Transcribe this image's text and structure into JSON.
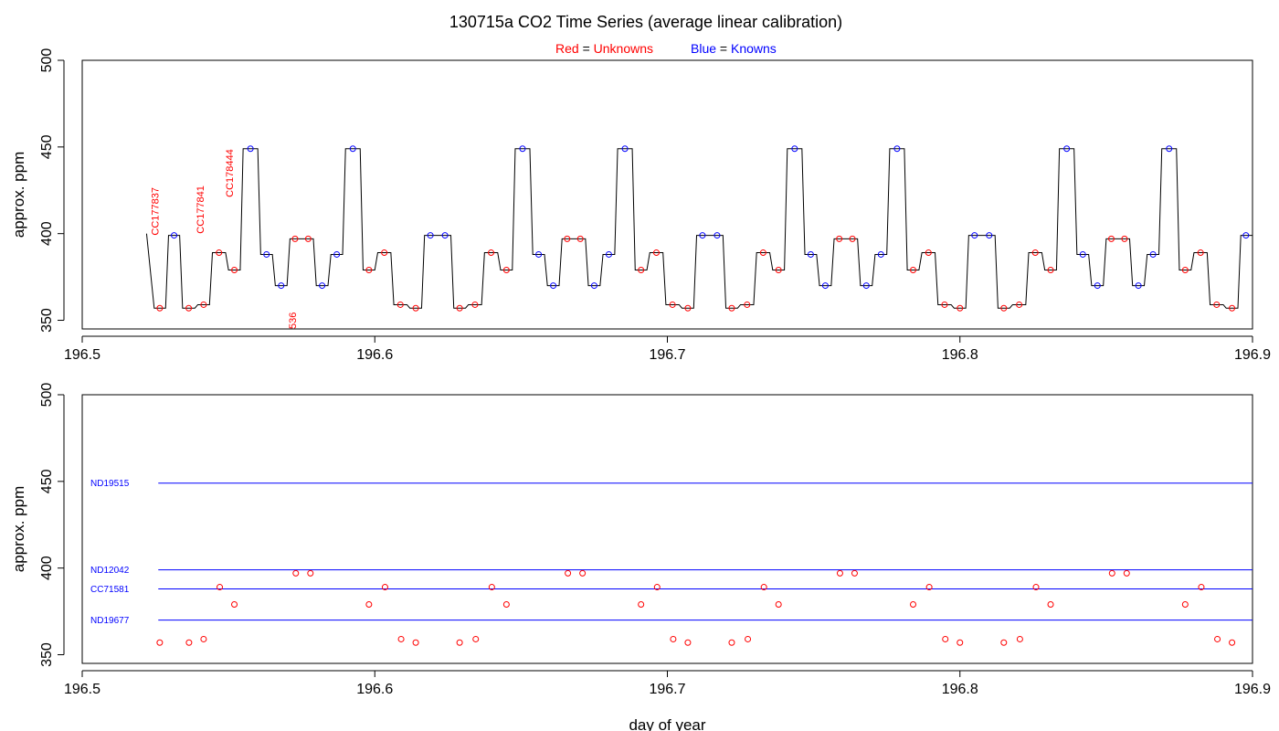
{
  "colors": {
    "unknown": "#ff0000",
    "known": "#0000ff",
    "trace": "#000000",
    "axis": "#000000"
  },
  "title": "130715a   CO2 Time Series (average linear calibration)",
  "legend": {
    "red_word": "Red",
    "red_eq": " = ",
    "red_label": "Unknowns",
    "blue_word": "Blue",
    "blue_eq": " = ",
    "blue_label": "Knowns"
  },
  "chart_data": [
    {
      "type": "line",
      "xlabel": "",
      "ylabel": "approx. ppm",
      "xlim": [
        196.5,
        196.9
      ],
      "ylim": [
        345,
        500
      ],
      "xticks": [
        "196.5",
        "196.6",
        "196.7",
        "196.8",
        "196.9"
      ],
      "yticks": [
        "350",
        "400",
        "450",
        "500"
      ],
      "trace_steps": [
        {
          "x0": 196.524,
          "x1": 196.529,
          "y": 357,
          "kind": "u"
        },
        {
          "x0": 196.529,
          "x1": 196.5338,
          "y": 399,
          "kind": "k"
        },
        {
          "x0": 196.5338,
          "x1": 196.539,
          "y": 357,
          "kind": "u"
        },
        {
          "x0": 196.539,
          "x1": 196.544,
          "y": 359,
          "kind": "u"
        },
        {
          "x0": 196.544,
          "x1": 196.5495,
          "y": 389,
          "kind": "u"
        },
        {
          "x0": 196.5495,
          "x1": 196.5545,
          "y": 379,
          "kind": "u"
        },
        {
          "x0": 196.5545,
          "x1": 196.5605,
          "y": 449,
          "kind": "k"
        },
        {
          "x0": 196.5605,
          "x1": 196.5655,
          "y": 388,
          "kind": "k"
        },
        {
          "x0": 196.5655,
          "x1": 196.5705,
          "y": 370,
          "kind": "k"
        },
        {
          "x0": 196.5705,
          "x1": 196.5795,
          "y": 397,
          "kind": "u"
        },
        {
          "x0": 196.5795,
          "x1": 196.5845,
          "y": 370,
          "kind": "k"
        },
        {
          "x0": 196.5845,
          "x1": 196.5895,
          "y": 388,
          "kind": "k"
        },
        {
          "x0": 196.5895,
          "x1": 196.5955,
          "y": 449,
          "kind": "k"
        },
        {
          "x0": 196.5955,
          "x1": 196.6005,
          "y": 379,
          "kind": "u"
        },
        {
          "x0": 196.6005,
          "x1": 196.606,
          "y": 389,
          "kind": "u"
        },
        {
          "x0": 196.606,
          "x1": 196.6115,
          "y": 359,
          "kind": "u"
        },
        {
          "x0": 196.6115,
          "x1": 196.6165,
          "y": 357,
          "kind": "u"
        },
        {
          "x0": 196.6165,
          "x1": 196.6265,
          "y": 399,
          "kind": "k"
        },
        {
          "x0": 196.6265,
          "x1": 196.6315,
          "y": 357,
          "kind": "u"
        },
        {
          "x0": 196.6315,
          "x1": 196.637,
          "y": 359,
          "kind": "u"
        },
        {
          "x0": 196.637,
          "x1": 196.6425,
          "y": 389,
          "kind": "u"
        },
        {
          "x0": 196.6425,
          "x1": 196.6475,
          "y": 379,
          "kind": "u"
        },
        {
          "x0": 196.6475,
          "x1": 196.6535,
          "y": 449,
          "kind": "k"
        },
        {
          "x0": 196.6535,
          "x1": 196.6585,
          "y": 388,
          "kind": "k"
        },
        {
          "x0": 196.6585,
          "x1": 196.6635,
          "y": 370,
          "kind": "k"
        },
        {
          "x0": 196.6635,
          "x1": 196.6725,
          "y": 397,
          "kind": "u"
        },
        {
          "x0": 196.6725,
          "x1": 196.6775,
          "y": 370,
          "kind": "k"
        },
        {
          "x0": 196.6775,
          "x1": 196.6825,
          "y": 388,
          "kind": "k"
        },
        {
          "x0": 196.6825,
          "x1": 196.6885,
          "y": 449,
          "kind": "k"
        },
        {
          "x0": 196.6885,
          "x1": 196.6935,
          "y": 379,
          "kind": "u"
        },
        {
          "x0": 196.6935,
          "x1": 196.699,
          "y": 389,
          "kind": "u"
        },
        {
          "x0": 196.699,
          "x1": 196.7045,
          "y": 359,
          "kind": "u"
        },
        {
          "x0": 196.7045,
          "x1": 196.7095,
          "y": 357,
          "kind": "u"
        },
        {
          "x0": 196.7095,
          "x1": 196.7195,
          "y": 399,
          "kind": "k"
        },
        {
          "x0": 196.7195,
          "x1": 196.7245,
          "y": 357,
          "kind": "u"
        },
        {
          "x0": 196.7245,
          "x1": 196.73,
          "y": 359,
          "kind": "u"
        },
        {
          "x0": 196.73,
          "x1": 196.7355,
          "y": 389,
          "kind": "u"
        },
        {
          "x0": 196.7355,
          "x1": 196.7405,
          "y": 379,
          "kind": "u"
        },
        {
          "x0": 196.7405,
          "x1": 196.7465,
          "y": 449,
          "kind": "k"
        },
        {
          "x0": 196.7465,
          "x1": 196.7515,
          "y": 388,
          "kind": "k"
        },
        {
          "x0": 196.7515,
          "x1": 196.7565,
          "y": 370,
          "kind": "k"
        },
        {
          "x0": 196.7565,
          "x1": 196.7655,
          "y": 397,
          "kind": "u"
        },
        {
          "x0": 196.7655,
          "x1": 196.7705,
          "y": 370,
          "kind": "k"
        },
        {
          "x0": 196.7705,
          "x1": 196.7755,
          "y": 388,
          "kind": "k"
        },
        {
          "x0": 196.7755,
          "x1": 196.7815,
          "y": 449,
          "kind": "k"
        },
        {
          "x0": 196.7815,
          "x1": 196.7865,
          "y": 379,
          "kind": "u"
        },
        {
          "x0": 196.7865,
          "x1": 196.792,
          "y": 389,
          "kind": "u"
        },
        {
          "x0": 196.792,
          "x1": 196.7975,
          "y": 359,
          "kind": "u"
        },
        {
          "x0": 196.7975,
          "x1": 196.8025,
          "y": 357,
          "kind": "u"
        },
        {
          "x0": 196.8025,
          "x1": 196.8125,
          "y": 399,
          "kind": "k"
        },
        {
          "x0": 196.8125,
          "x1": 196.8175,
          "y": 357,
          "kind": "u"
        },
        {
          "x0": 196.8175,
          "x1": 196.823,
          "y": 359,
          "kind": "u"
        },
        {
          "x0": 196.823,
          "x1": 196.8285,
          "y": 389,
          "kind": "u"
        },
        {
          "x0": 196.8285,
          "x1": 196.8335,
          "y": 379,
          "kind": "u"
        },
        {
          "x0": 196.8335,
          "x1": 196.8395,
          "y": 449,
          "kind": "k"
        },
        {
          "x0": 196.8395,
          "x1": 196.8445,
          "y": 388,
          "kind": "k"
        },
        {
          "x0": 196.8445,
          "x1": 196.8495,
          "y": 370,
          "kind": "k"
        },
        {
          "x0": 196.8495,
          "x1": 196.8585,
          "y": 397,
          "kind": "u"
        },
        {
          "x0": 196.8585,
          "x1": 196.8635,
          "y": 370,
          "kind": "k"
        },
        {
          "x0": 196.8635,
          "x1": 196.8685,
          "y": 388,
          "kind": "k"
        },
        {
          "x0": 196.8685,
          "x1": 196.8745,
          "y": 449,
          "kind": "k"
        },
        {
          "x0": 196.8745,
          "x1": 196.8795,
          "y": 379,
          "kind": "u"
        },
        {
          "x0": 196.8795,
          "x1": 196.885,
          "y": 389,
          "kind": "u"
        },
        {
          "x0": 196.885,
          "x1": 196.8905,
          "y": 359,
          "kind": "u"
        },
        {
          "x0": 196.8905,
          "x1": 196.8955,
          "y": 357,
          "kind": "u"
        },
        {
          "x0": 196.8955,
          "x1": 196.9,
          "y": 399,
          "kind": "k"
        }
      ],
      "trace_start": {
        "x": 196.522,
        "y": 400
      },
      "trace_end": {
        "x": 196.9,
        "y": 399
      },
      "annotations": [
        {
          "text": "CC177837",
          "x": 196.526,
          "y": 399
        },
        {
          "text": "CC177841",
          "x": 196.5415,
          "y": 400
        },
        {
          "text": "CC178444",
          "x": 196.5515,
          "y": 421
        },
        {
          "text": "536",
          "x": 196.573,
          "y": 345
        }
      ]
    },
    {
      "type": "scatter",
      "xlabel": "day of year",
      "ylabel": "approx. ppm",
      "xlim": [
        196.5,
        196.9
      ],
      "ylim": [
        345,
        500
      ],
      "xticks": [
        "196.5",
        "196.6",
        "196.7",
        "196.8",
        "196.9"
      ],
      "yticks": [
        "350",
        "400",
        "450",
        "500"
      ],
      "reference_lines": [
        {
          "name": "ND19515",
          "y": 449,
          "x0": 196.526,
          "x1": 196.9
        },
        {
          "name": "ND12042",
          "y": 399,
          "x0": 196.526,
          "x1": 196.9
        },
        {
          "name": "CC71581",
          "y": 388,
          "x0": 196.526,
          "x1": 196.9
        },
        {
          "name": "ND19677",
          "y": 370,
          "x0": 196.526,
          "x1": 196.9
        }
      ],
      "points": [
        {
          "x": 196.5265,
          "y": 357
        },
        {
          "x": 196.5365,
          "y": 357
        },
        {
          "x": 196.5415,
          "y": 359
        },
        {
          "x": 196.547,
          "y": 389
        },
        {
          "x": 196.552,
          "y": 379
        },
        {
          "x": 196.573,
          "y": 397
        },
        {
          "x": 196.578,
          "y": 397
        },
        {
          "x": 196.598,
          "y": 379
        },
        {
          "x": 196.6035,
          "y": 389
        },
        {
          "x": 196.609,
          "y": 359
        },
        {
          "x": 196.614,
          "y": 357
        },
        {
          "x": 196.629,
          "y": 357
        },
        {
          "x": 196.6345,
          "y": 359
        },
        {
          "x": 196.64,
          "y": 389
        },
        {
          "x": 196.645,
          "y": 379
        },
        {
          "x": 196.666,
          "y": 397
        },
        {
          "x": 196.671,
          "y": 397
        },
        {
          "x": 196.691,
          "y": 379
        },
        {
          "x": 196.6965,
          "y": 389
        },
        {
          "x": 196.702,
          "y": 359
        },
        {
          "x": 196.707,
          "y": 357
        },
        {
          "x": 196.722,
          "y": 357
        },
        {
          "x": 196.7275,
          "y": 359
        },
        {
          "x": 196.733,
          "y": 389
        },
        {
          "x": 196.738,
          "y": 379
        },
        {
          "x": 196.759,
          "y": 397
        },
        {
          "x": 196.764,
          "y": 397
        },
        {
          "x": 196.784,
          "y": 379
        },
        {
          "x": 196.7895,
          "y": 389
        },
        {
          "x": 196.795,
          "y": 359
        },
        {
          "x": 196.8,
          "y": 357
        },
        {
          "x": 196.815,
          "y": 357
        },
        {
          "x": 196.8205,
          "y": 359
        },
        {
          "x": 196.826,
          "y": 389
        },
        {
          "x": 196.831,
          "y": 379
        },
        {
          "x": 196.852,
          "y": 397
        },
        {
          "x": 196.857,
          "y": 397
        },
        {
          "x": 196.877,
          "y": 379
        },
        {
          "x": 196.8825,
          "y": 389
        },
        {
          "x": 196.888,
          "y": 359
        },
        {
          "x": 196.893,
          "y": 357
        }
      ]
    }
  ]
}
